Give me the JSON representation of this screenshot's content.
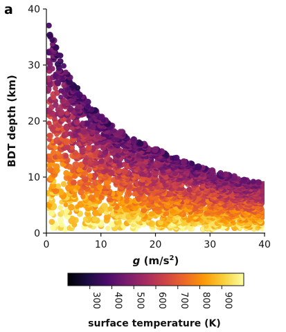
{
  "panel_label": "a",
  "chart_data": {
    "type": "scatter",
    "xlabel_italic": "g",
    "xlabel_units": "(m/s",
    "xlabel_sup": "2",
    "xlabel_close": ")",
    "ylabel": "BDT depth (km)",
    "xlim": [
      0,
      40
    ],
    "ylim": [
      0,
      40
    ],
    "xticks": [
      0,
      10,
      20,
      30,
      40
    ],
    "yticks": [
      0,
      10,
      20,
      30,
      40
    ],
    "grid": false,
    "upper_envelope": [
      [
        0.2,
        38
      ],
      [
        1,
        36.5
      ],
      [
        2,
        33.5
      ],
      [
        3,
        31
      ],
      [
        4,
        28.8
      ],
      [
        5,
        27
      ],
      [
        6,
        25.6
      ],
      [
        8,
        23
      ],
      [
        10,
        21
      ],
      [
        12,
        19.2
      ],
      [
        15,
        17.3
      ],
      [
        20,
        15
      ],
      [
        25,
        13
      ],
      [
        30,
        11.3
      ],
      [
        35,
        10
      ],
      [
        40,
        8.8
      ]
    ],
    "color_encoding": {
      "label": "surface temperature (K)",
      "colormap": "inferno",
      "range": [
        200,
        1000
      ],
      "ticks": [
        300,
        400,
        500,
        600,
        700,
        800,
        900
      ],
      "colors": [
        "#000004",
        "#1b0c41",
        "#4a0c6b",
        "#781c6d",
        "#a52c60",
        "#cf4446",
        "#ed6925",
        "#fb9b06",
        "#f7d13d",
        "#fcffa4"
      ]
    }
  }
}
